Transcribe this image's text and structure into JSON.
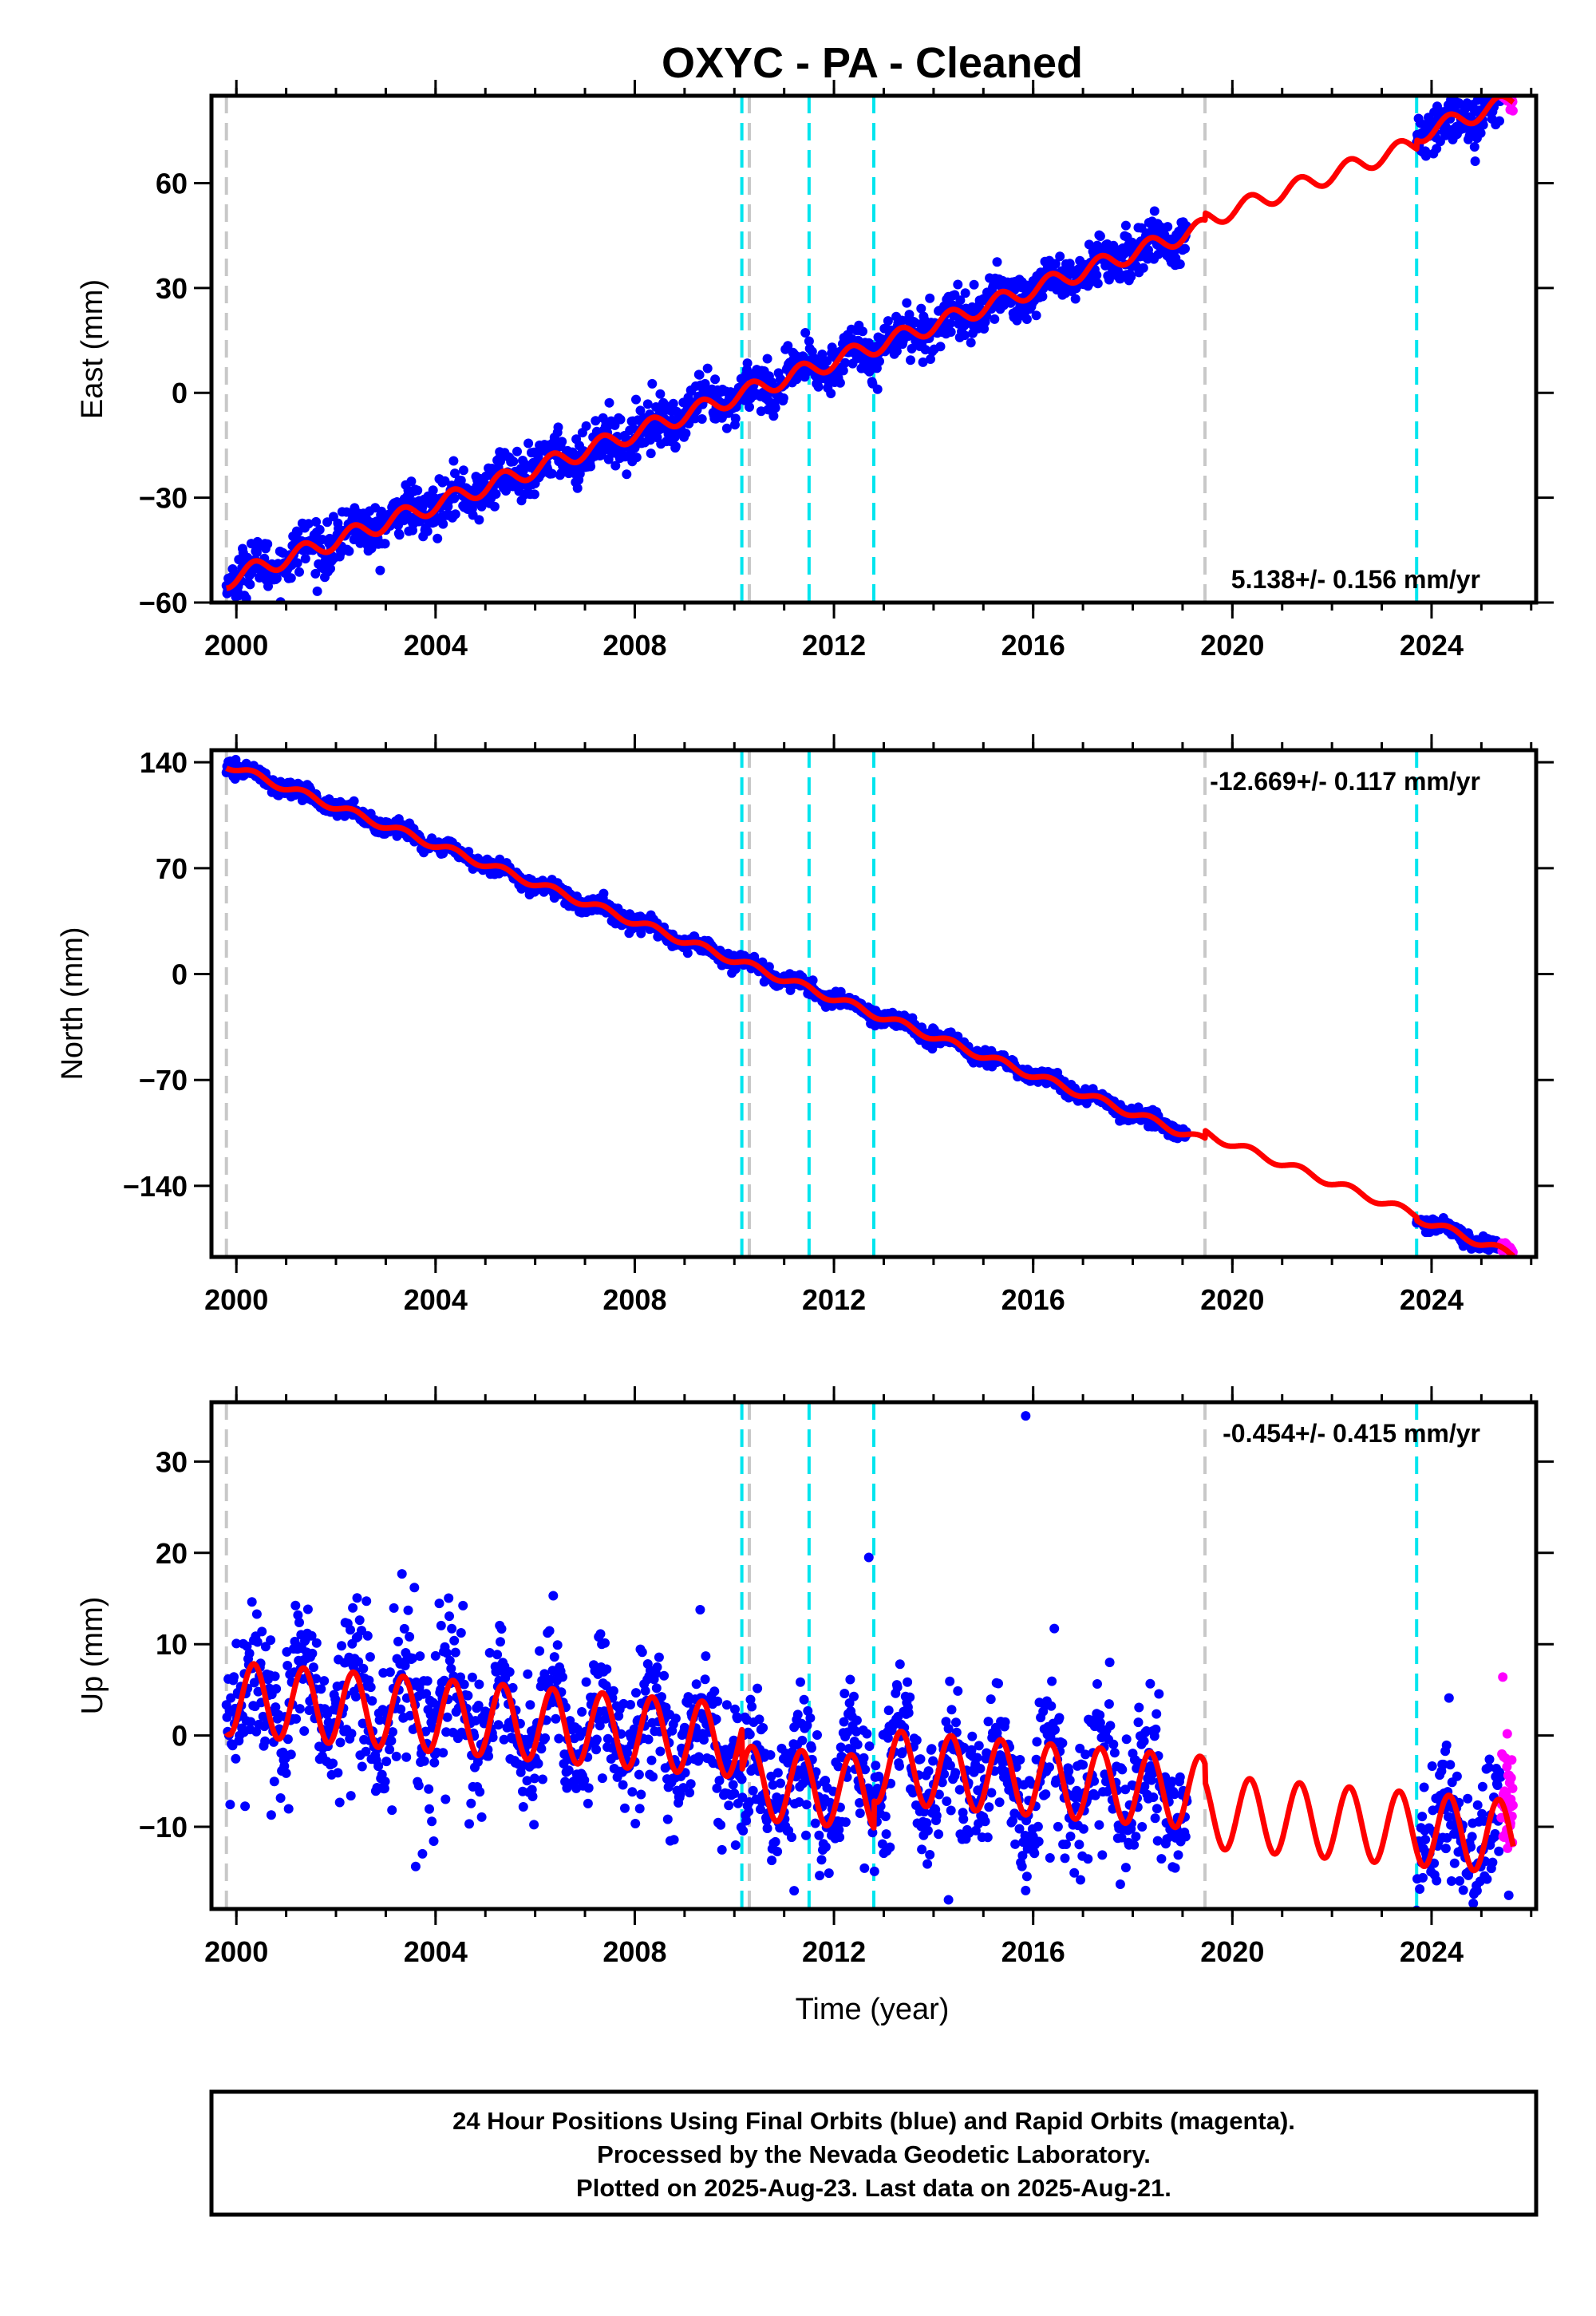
{
  "title": "OXYC  - PA - Cleaned",
  "x_axis_label": "Time (year)",
  "footer": {
    "line1": "24 Hour Positions Using Final Orbits (blue) and Rapid Orbits (magenta).",
    "line2": "Processed by the Nevada Geodetic Laboratory.",
    "line3": "Plotted on 2025-Aug-23. Last data on 2025-Aug-21."
  },
  "colors": {
    "final_orbits": "#0000ff",
    "rapid_orbits": "#ff00ff",
    "model_fit": "#ff0000",
    "event_equipment": "#c8c8c8",
    "event_earthquake": "#00e5ee"
  },
  "chart_data": [
    {
      "type": "scatter",
      "panel": "east",
      "ylabel": "East (mm)",
      "rate_label": "5.138+/- 0.156 mm/yr",
      "rate_position": "bottom-right",
      "xlim": [
        1999.5,
        2026.1
      ],
      "ylim": [
        -60,
        85
      ],
      "x_ticks": [
        "2000",
        "2004",
        "2008",
        "2012",
        "2016",
        "2020",
        "2024"
      ],
      "y_ticks": [
        "-60",
        "-30",
        "0",
        "30",
        "60"
      ],
      "series": [
        {
          "name": "Final Orbits",
          "color": "#0000ff",
          "x_range": [
            1999.8,
            2025.4
          ],
          "gap": [
            2019.1,
            2023.7
          ],
          "scatter_mm": 3.5
        },
        {
          "name": "Rapid Orbits",
          "color": "#ff00ff",
          "x_range": [
            2025.4,
            2025.64
          ],
          "scatter_mm": 1.5
        },
        {
          "name": "Model",
          "color": "#ff0000",
          "offset_mm": -52.5,
          "rate_mm_per_yr": 5.138,
          "annual_amplitude_mm": 2.5,
          "steps": [
            {
              "year": 2019.45,
              "value_mm": 2.0
            },
            {
              "year": 2023.7,
              "value_mm": 2.5
            }
          ]
        }
      ],
      "event_lines": [
        {
          "year": 1999.8,
          "kind": "equipment"
        },
        {
          "year": 2010.15,
          "kind": "earthquake"
        },
        {
          "year": 2010.3,
          "kind": "equipment"
        },
        {
          "year": 2011.5,
          "kind": "earthquake"
        },
        {
          "year": 2012.8,
          "kind": "earthquake"
        },
        {
          "year": 2019.45,
          "kind": "equipment"
        },
        {
          "year": 2023.7,
          "kind": "earthquake"
        }
      ]
    },
    {
      "type": "scatter",
      "panel": "north",
      "ylabel": "North (mm)",
      "rate_label": "-12.669+/- 0.117 mm/yr",
      "rate_position": "top-right",
      "xlim": [
        1999.5,
        2026.1
      ],
      "ylim": [
        -187,
        148
      ],
      "x_ticks": [
        "2000",
        "2004",
        "2008",
        "2012",
        "2016",
        "2020",
        "2024"
      ],
      "y_ticks": [
        "-140",
        "-70",
        "0",
        "70",
        "140"
      ],
      "series": [
        {
          "name": "Final Orbits",
          "color": "#0000ff",
          "x_range": [
            1999.8,
            2025.4
          ],
          "gap": [
            2019.1,
            2023.7
          ],
          "scatter_mm": 2.5
        },
        {
          "name": "Rapid Orbits",
          "color": "#ff00ff",
          "x_range": [
            2025.4,
            2025.64
          ],
          "scatter_mm": 1.5
        },
        {
          "name": "Model",
          "color": "#ff0000",
          "offset_mm": 136,
          "rate_mm_per_yr": -12.669,
          "annual_amplitude_mm": 2.5,
          "steps": [
            {
              "year": 2019.45,
              "value_mm": 5
            },
            {
              "year": 2023.7,
              "value_mm": -2
            }
          ]
        }
      ],
      "event_lines": [
        {
          "year": 1999.8,
          "kind": "equipment"
        },
        {
          "year": 2010.15,
          "kind": "earthquake"
        },
        {
          "year": 2010.3,
          "kind": "equipment"
        },
        {
          "year": 2011.5,
          "kind": "earthquake"
        },
        {
          "year": 2012.8,
          "kind": "earthquake"
        },
        {
          "year": 2019.45,
          "kind": "equipment"
        },
        {
          "year": 2023.7,
          "kind": "earthquake"
        }
      ]
    },
    {
      "type": "scatter",
      "panel": "up",
      "ylabel": "Up (mm)",
      "rate_label": "-0.454+/- 0.415 mm/yr",
      "rate_position": "top-right",
      "xlim": [
        1999.5,
        2026.1
      ],
      "ylim": [
        -19,
        36.5
      ],
      "x_ticks": [
        "2000",
        "2004",
        "2008",
        "2012",
        "2016",
        "2020",
        "2024"
      ],
      "y_ticks": [
        "-10",
        "0",
        "10",
        "20",
        "30"
      ],
      "series": [
        {
          "name": "Final Orbits",
          "color": "#0000ff",
          "x_range": [
            1999.8,
            2025.4
          ],
          "gap": [
            2019.1,
            2023.7
          ],
          "scatter_mm": 3.8
        },
        {
          "name": "Rapid Orbits",
          "color": "#ff00ff",
          "x_range": [
            2025.4,
            2025.64
          ],
          "scatter_mm": 4
        },
        {
          "name": "Model",
          "color": "#ff0000",
          "offset_mm": 4.0,
          "rate_mm_per_yr": -0.454,
          "annual_amplitude_mm": 4.0,
          "steps": [
            {
              "year": 2010.15,
              "value_mm": -4.5
            },
            {
              "year": 2012.8,
              "value_mm": 3.0
            },
            {
              "year": 2019.45,
              "value_mm": -2.0
            }
          ]
        },
        {
          "name": "Outliers",
          "color": "#0000ff",
          "points": [
            [
              2015.85,
              35.0
            ],
            [
              2014.3,
              -18.0
            ],
            [
              2012.7,
              19.5
            ],
            [
              2025.55,
              -17.5
            ],
            [
              2011.2,
              -17.0
            ]
          ]
        }
      ],
      "event_lines": [
        {
          "year": 1999.8,
          "kind": "equipment"
        },
        {
          "year": 2010.15,
          "kind": "earthquake"
        },
        {
          "year": 2010.3,
          "kind": "equipment"
        },
        {
          "year": 2011.5,
          "kind": "earthquake"
        },
        {
          "year": 2012.8,
          "kind": "earthquake"
        },
        {
          "year": 2019.45,
          "kind": "equipment"
        },
        {
          "year": 2023.7,
          "kind": "earthquake"
        }
      ]
    }
  ]
}
